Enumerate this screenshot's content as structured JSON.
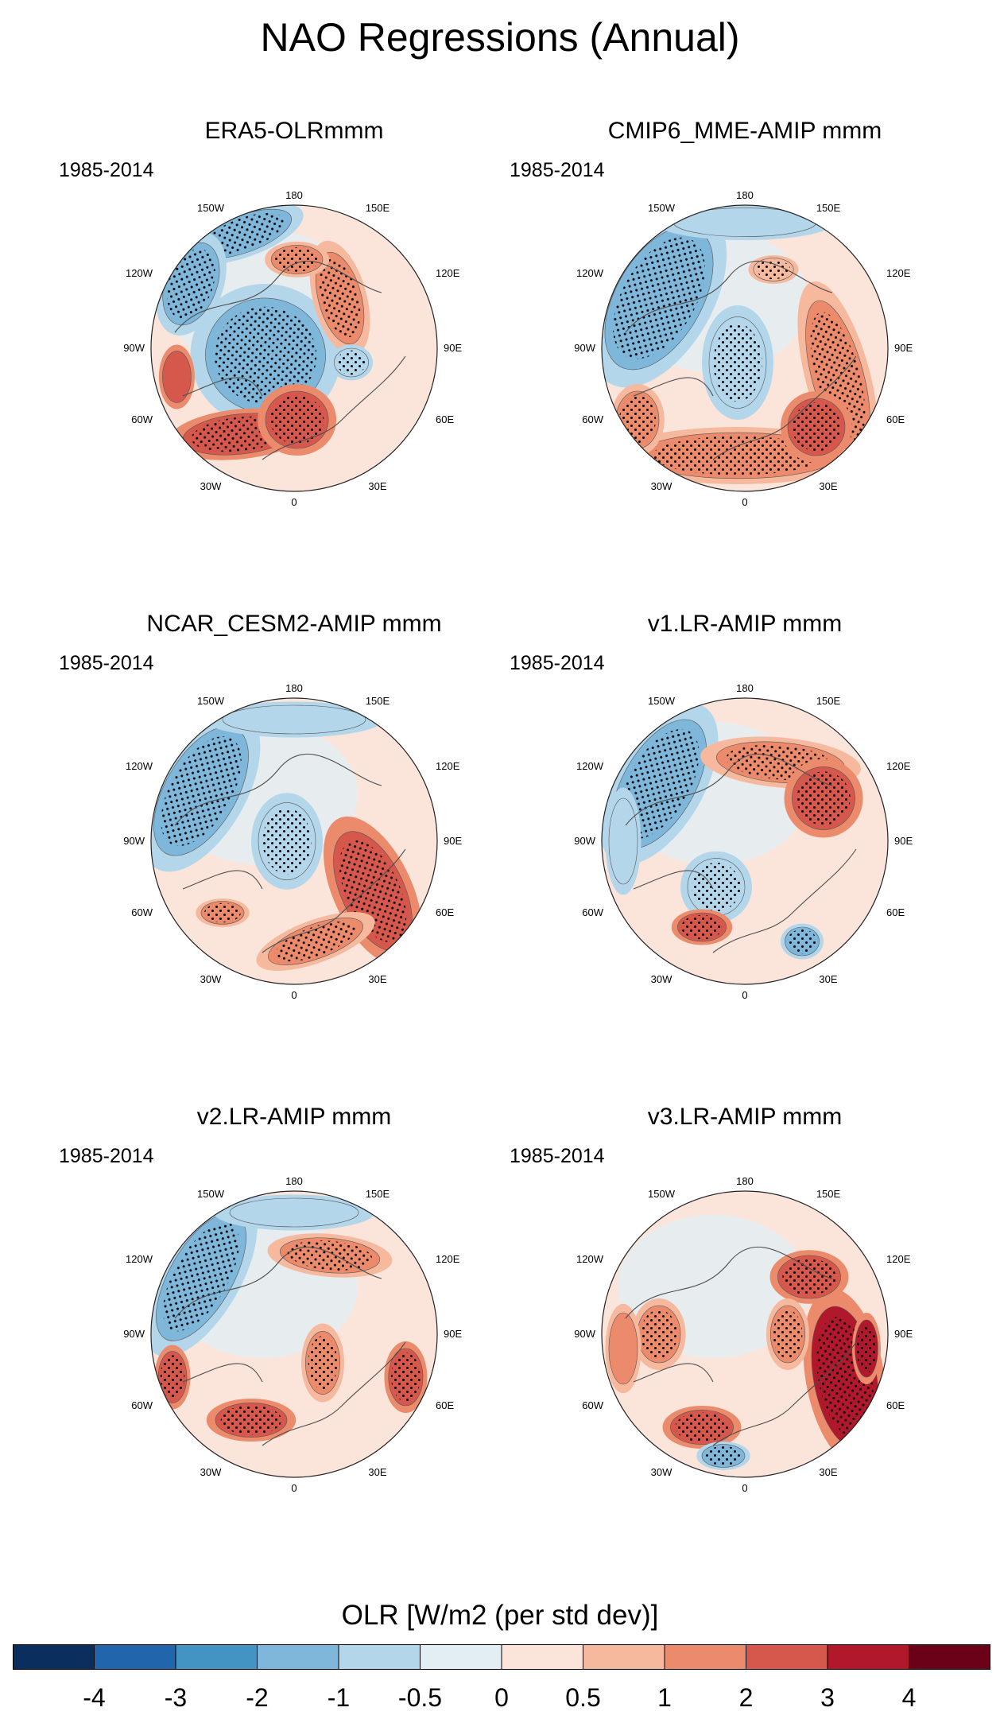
{
  "figure": {
    "title": "NAO Regressions (Annual)"
  },
  "panels": [
    {
      "title": "ERA5-OLRmmm",
      "period": "1985-2014"
    },
    {
      "title": "CMIP6_MME-AMIP  mmm",
      "period": "1985-2014"
    },
    {
      "title": "NCAR_CESM2-AMIP  mmm",
      "period": "1985-2014"
    },
    {
      "title": "v1.LR-AMIP  mmm",
      "period": "1985-2014"
    },
    {
      "title": "v2.LR-AMIP  mmm",
      "period": "1985-2014"
    },
    {
      "title": "v3.LR-AMIP  mmm",
      "period": "1985-2014"
    }
  ],
  "map_labels": {
    "top": "180",
    "bottom": "0",
    "upper_left": "150W",
    "upper_right": "150E",
    "mid_upper_left": "120W",
    "mid_upper_right": "120E",
    "left": "90W",
    "right": "90E",
    "mid_lower_left": "60W",
    "mid_lower_right": "60E",
    "lower_left": "30W",
    "lower_right": "30E"
  },
  "colorbar": {
    "title": "OLR [W/m2 (per std dev)]",
    "tick_labels": [
      "-4",
      "-3",
      "-2",
      "-1",
      "-0.5",
      "0",
      "0.5",
      "1",
      "2",
      "3",
      "4"
    ],
    "colors": [
      "#0a2f5e",
      "#2166ac",
      "#4393c3",
      "#7fb7db",
      "#b3d6ea",
      "#e2eef4",
      "#fbe5db",
      "#f6b99e",
      "#ec8a6c",
      "#d6584d",
      "#b2182b",
      "#6b0019"
    ]
  },
  "chart_data": [
    {
      "type": "polar_stereographic_map",
      "title": "ERA5-OLRmmm",
      "variable": "OLR",
      "units": "W/m2 per std dev",
      "period": "1985-2014",
      "anomalies": [
        {
          "region": "central Arctic / Greenland",
          "sign": "negative",
          "approx_value": -1.5,
          "stippled": true
        },
        {
          "region": "North Atlantic 30-45N",
          "sign": "positive",
          "approx_value": 2.5,
          "stippled": true
        },
        {
          "region": "western Europe / Mediterranean",
          "sign": "positive",
          "approx_value": 2,
          "stippled": true
        },
        {
          "region": "North Pacific Aleutian",
          "sign": "negative",
          "approx_value": -1.5,
          "stippled": true
        },
        {
          "region": "East Asia / Siberia",
          "sign": "positive",
          "approx_value": 1.5,
          "stippled": true
        }
      ]
    },
    {
      "type": "polar_stereographic_map",
      "title": "CMIP6_MME-AMIP  mmm",
      "variable": "OLR",
      "units": "W/m2 per std dev",
      "period": "1985-2014",
      "anomalies": [
        {
          "region": "Arctic / Greenland",
          "sign": "negative",
          "approx_value": -0.7,
          "stippled": true
        },
        {
          "region": "North Pacific (150W-120W)",
          "sign": "negative",
          "approx_value": -2,
          "stippled": true
        },
        {
          "region": "subtropical ring (Atlantic-Africa-Asia)",
          "sign": "positive",
          "approx_value": 1.5,
          "stippled": true
        }
      ]
    },
    {
      "type": "polar_stereographic_map",
      "title": "NCAR_CESM2-AMIP  mmm",
      "variable": "OLR",
      "units": "W/m2 per std dev",
      "period": "1985-2014",
      "anomalies": [
        {
          "region": "central Arctic / Greenland",
          "sign": "negative",
          "approx_value": -0.7,
          "stippled": true
        },
        {
          "region": "North Pacific",
          "sign": "negative",
          "approx_value": -1.5,
          "stippled": true
        },
        {
          "region": "Middle East / South Asia",
          "sign": "positive",
          "approx_value": 2,
          "stippled": true
        },
        {
          "region": "North Africa / Europe",
          "sign": "positive",
          "approx_value": 1.5,
          "stippled": true
        }
      ]
    },
    {
      "type": "polar_stereographic_map",
      "title": "v1.LR-AMIP  mmm",
      "variable": "OLR",
      "units": "W/m2 per std dev",
      "period": "1985-2014",
      "anomalies": [
        {
          "region": "North Pacific",
          "sign": "negative",
          "approx_value": -2,
          "stippled": true
        },
        {
          "region": "East Asia",
          "sign": "positive",
          "approx_value": 2,
          "stippled": true
        },
        {
          "region": "Greenland / North Atlantic high latitudes",
          "sign": "negative",
          "approx_value": -0.7,
          "stippled": true
        },
        {
          "region": "subtropical North Atlantic",
          "sign": "positive",
          "approx_value": 2,
          "stippled": true
        }
      ]
    },
    {
      "type": "polar_stereographic_map",
      "title": "v2.LR-AMIP  mmm",
      "variable": "OLR",
      "units": "W/m2 per std dev",
      "period": "1985-2014",
      "anomalies": [
        {
          "region": "North Pacific",
          "sign": "negative",
          "approx_value": -2,
          "stippled": true
        },
        {
          "region": "East Asia / Pacific",
          "sign": "positive",
          "approx_value": 1,
          "stippled": true
        },
        {
          "region": "subtropical North Atlantic",
          "sign": "positive",
          "approx_value": 2,
          "stippled": true
        },
        {
          "region": "Arabian Sea / Middle East",
          "sign": "positive",
          "approx_value": 2,
          "stippled": true
        }
      ]
    },
    {
      "type": "polar_stereographic_map",
      "title": "v3.LR-AMIP  mmm",
      "variable": "OLR",
      "units": "W/m2 per std dev",
      "period": "1985-2014",
      "anomalies": [
        {
          "region": "South Asia / Indian Ocean",
          "sign": "positive",
          "approx_value": 3,
          "stippled": true
        },
        {
          "region": "East Asia",
          "sign": "positive",
          "approx_value": 2,
          "stippled": true
        },
        {
          "region": "subtropical North Atlantic",
          "sign": "positive",
          "approx_value": 2,
          "stippled": true
        },
        {
          "region": "North America",
          "sign": "positive",
          "approx_value": 1.5,
          "stippled": true
        },
        {
          "region": "tropical Atlantic south",
          "sign": "negative",
          "approx_value": -1.5,
          "stippled": true
        }
      ]
    }
  ]
}
